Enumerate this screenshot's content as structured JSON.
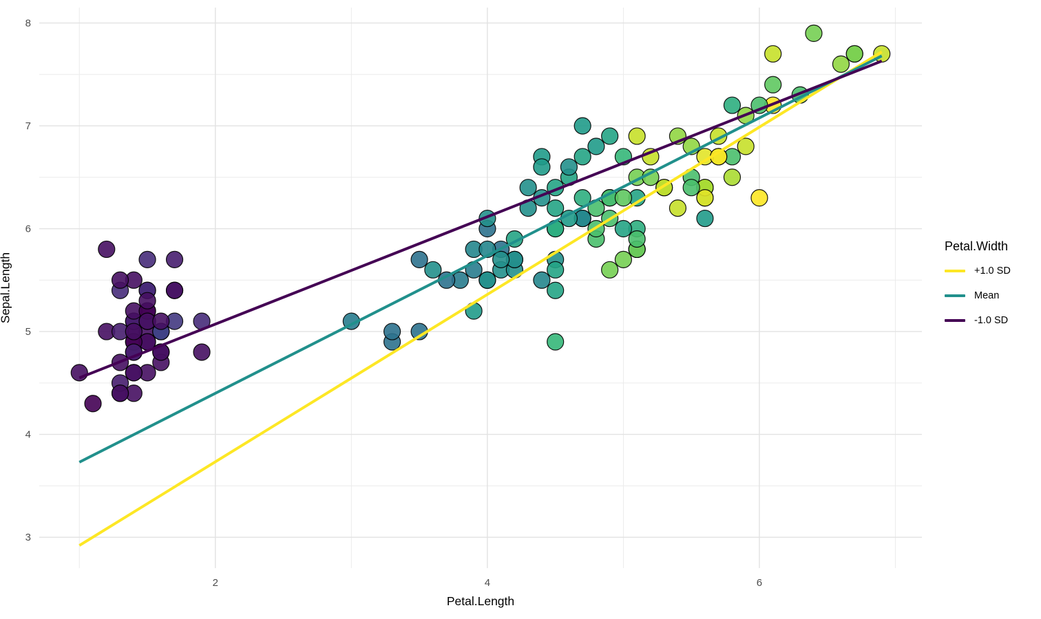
{
  "axes": {
    "x_title": "Petal.Length",
    "y_title": "Sepal.Length",
    "x_tick_labels": [
      "2",
      "4",
      "6"
    ],
    "y_tick_labels": [
      "3",
      "4",
      "5",
      "6",
      "7",
      "8"
    ],
    "tick_label_color": "#4d4d4d"
  },
  "legend": {
    "title": "Petal.Width",
    "items": [
      {
        "label": "+1.0 SD",
        "color": "#fde725"
      },
      {
        "label": "Mean",
        "color": "#21908c"
      },
      {
        "label": "-1.0 SD",
        "color": "#440154"
      }
    ]
  },
  "chart_data": {
    "type": "scatter",
    "title": "",
    "xlabel": "Petal.Length",
    "ylabel": "Sepal.Length",
    "xlim": [
      0.705,
      7.195
    ],
    "ylim": [
      2.7,
      8.15
    ],
    "x_major_ticks": [
      2,
      4,
      6
    ],
    "x_minor_ticks": [
      1,
      3,
      5,
      7
    ],
    "y_major_ticks": [
      3,
      4,
      5,
      6,
      7,
      8
    ],
    "y_minor_ticks": [
      3.5,
      4.5,
      5.5,
      6.5,
      7.5
    ],
    "grid": true,
    "legend_position": "right",
    "grid_major_color": "#e2e2e2",
    "grid_minor_color": "#ebebeb",
    "point_stroke_color": "#000000",
    "color_scale": {
      "name": "viridis",
      "domain": [
        0.1,
        2.5
      ],
      "stops": [
        "#440154",
        "#482878",
        "#3e4989",
        "#31688e",
        "#26828e",
        "#1f9e89",
        "#35b779",
        "#6dcd59",
        "#b4de2c",
        "#fde725"
      ]
    },
    "lines": [
      {
        "name": "+1.0 SD",
        "color": "#fde725",
        "x": [
          1.0,
          6.9
        ],
        "y": [
          2.92,
          7.72
        ]
      },
      {
        "name": "Mean",
        "color": "#21908c",
        "x": [
          1.0,
          6.9
        ],
        "y": [
          3.73,
          7.68
        ]
      },
      {
        "name": "-1.0 SD",
        "color": "#440154",
        "x": [
          1.0,
          6.9
        ],
        "y": [
          4.55,
          7.63
        ]
      }
    ],
    "point_fields": [
      "petal_length",
      "sepal_length",
      "petal_width"
    ],
    "points": [
      [
        1.4,
        5.1,
        0.2
      ],
      [
        1.4,
        4.9,
        0.2
      ],
      [
        1.3,
        4.7,
        0.2
      ],
      [
        1.5,
        4.6,
        0.2
      ],
      [
        1.4,
        5.0,
        0.2
      ],
      [
        1.7,
        5.4,
        0.4
      ],
      [
        1.4,
        4.6,
        0.3
      ],
      [
        1.5,
        5.0,
        0.2
      ],
      [
        1.4,
        4.4,
        0.2
      ],
      [
        1.5,
        4.9,
        0.1
      ],
      [
        1.5,
        5.4,
        0.2
      ],
      [
        1.6,
        4.8,
        0.2
      ],
      [
        1.4,
        4.8,
        0.1
      ],
      [
        1.1,
        4.3,
        0.1
      ],
      [
        1.2,
        5.8,
        0.2
      ],
      [
        1.5,
        5.7,
        0.4
      ],
      [
        1.3,
        5.4,
        0.4
      ],
      [
        1.4,
        5.1,
        0.3
      ],
      [
        1.7,
        5.7,
        0.3
      ],
      [
        1.5,
        5.1,
        0.3
      ],
      [
        1.7,
        5.4,
        0.2
      ],
      [
        1.5,
        5.1,
        0.4
      ],
      [
        1.0,
        4.6,
        0.2
      ],
      [
        1.7,
        5.1,
        0.5
      ],
      [
        1.9,
        4.8,
        0.2
      ],
      [
        1.6,
        5.0,
        0.2
      ],
      [
        1.6,
        5.0,
        0.4
      ],
      [
        1.5,
        5.2,
        0.2
      ],
      [
        1.4,
        5.2,
        0.2
      ],
      [
        1.6,
        4.7,
        0.2
      ],
      [
        1.6,
        4.8,
        0.2
      ],
      [
        1.5,
        5.4,
        0.4
      ],
      [
        1.5,
        5.2,
        0.1
      ],
      [
        1.4,
        5.5,
        0.2
      ],
      [
        1.5,
        4.9,
        0.2
      ],
      [
        1.2,
        5.0,
        0.2
      ],
      [
        1.3,
        5.5,
        0.2
      ],
      [
        1.4,
        4.9,
        0.1
      ],
      [
        1.3,
        4.4,
        0.2
      ],
      [
        1.5,
        5.1,
        0.2
      ],
      [
        1.3,
        5.0,
        0.3
      ],
      [
        1.3,
        4.5,
        0.3
      ],
      [
        1.3,
        4.4,
        0.2
      ],
      [
        1.6,
        5.0,
        0.6
      ],
      [
        1.9,
        5.1,
        0.4
      ],
      [
        1.4,
        4.8,
        0.3
      ],
      [
        1.6,
        5.1,
        0.2
      ],
      [
        1.4,
        4.6,
        0.2
      ],
      [
        1.5,
        5.3,
        0.2
      ],
      [
        1.4,
        5.0,
        0.2
      ],
      [
        4.7,
        7.0,
        1.4
      ],
      [
        4.5,
        6.4,
        1.5
      ],
      [
        4.9,
        6.9,
        1.5
      ],
      [
        4.0,
        5.5,
        1.3
      ],
      [
        4.6,
        6.5,
        1.5
      ],
      [
        4.5,
        5.7,
        1.3
      ],
      [
        4.7,
        6.3,
        1.6
      ],
      [
        3.3,
        4.9,
        1.0
      ],
      [
        4.6,
        6.6,
        1.3
      ],
      [
        3.9,
        5.2,
        1.4
      ],
      [
        3.5,
        5.0,
        1.0
      ],
      [
        4.2,
        5.9,
        1.5
      ],
      [
        4.0,
        6.0,
        1.0
      ],
      [
        4.7,
        6.1,
        1.4
      ],
      [
        3.6,
        5.6,
        1.3
      ],
      [
        4.4,
        6.7,
        1.4
      ],
      [
        4.5,
        5.6,
        1.5
      ],
      [
        4.1,
        5.8,
        1.0
      ],
      [
        4.5,
        6.2,
        1.5
      ],
      [
        3.9,
        5.6,
        1.1
      ],
      [
        4.8,
        5.9,
        1.8
      ],
      [
        4.0,
        6.1,
        1.3
      ],
      [
        4.9,
        6.3,
        1.5
      ],
      [
        4.7,
        6.1,
        1.2
      ],
      [
        4.3,
        6.4,
        1.3
      ],
      [
        4.4,
        6.6,
        1.4
      ],
      [
        4.8,
        6.8,
        1.4
      ],
      [
        5.0,
        6.7,
        1.7
      ],
      [
        4.5,
        6.0,
        1.5
      ],
      [
        3.5,
        5.7,
        1.0
      ],
      [
        3.8,
        5.5,
        1.1
      ],
      [
        3.7,
        5.5,
        1.0
      ],
      [
        3.9,
        5.8,
        1.2
      ],
      [
        5.1,
        6.0,
        1.6
      ],
      [
        4.5,
        5.4,
        1.5
      ],
      [
        4.5,
        6.0,
        1.6
      ],
      [
        4.7,
        6.7,
        1.5
      ],
      [
        4.4,
        6.3,
        1.3
      ],
      [
        4.1,
        5.6,
        1.3
      ],
      [
        4.0,
        5.5,
        1.3
      ],
      [
        4.4,
        5.5,
        1.2
      ],
      [
        4.6,
        6.1,
        1.4
      ],
      [
        4.0,
        5.8,
        1.2
      ],
      [
        3.3,
        5.0,
        1.0
      ],
      [
        4.2,
        5.6,
        1.3
      ],
      [
        4.2,
        5.7,
        1.2
      ],
      [
        4.2,
        5.7,
        1.3
      ],
      [
        4.3,
        6.2,
        1.3
      ],
      [
        3.0,
        5.1,
        1.1
      ],
      [
        4.1,
        5.7,
        1.3
      ],
      [
        6.0,
        6.3,
        2.5
      ],
      [
        5.1,
        5.8,
        1.9
      ],
      [
        5.9,
        7.1,
        2.1
      ],
      [
        5.6,
        6.3,
        1.8
      ],
      [
        5.8,
        6.5,
        2.2
      ],
      [
        6.6,
        7.6,
        2.1
      ],
      [
        4.5,
        4.9,
        1.7
      ],
      [
        6.3,
        7.3,
        1.8
      ],
      [
        5.8,
        6.7,
        1.8
      ],
      [
        6.1,
        7.2,
        2.5
      ],
      [
        5.1,
        6.5,
        2.0
      ],
      [
        5.3,
        6.4,
        1.9
      ],
      [
        5.5,
        6.8,
        2.1
      ],
      [
        5.0,
        5.7,
        2.0
      ],
      [
        5.1,
        5.8,
        2.4
      ],
      [
        5.3,
        6.4,
        2.3
      ],
      [
        5.5,
        6.5,
        1.8
      ],
      [
        6.7,
        7.7,
        2.2
      ],
      [
        6.9,
        7.7,
        2.3
      ],
      [
        5.0,
        6.0,
        1.5
      ],
      [
        5.7,
        6.9,
        2.3
      ],
      [
        4.9,
        5.6,
        2.0
      ],
      [
        6.7,
        7.7,
        2.0
      ],
      [
        4.9,
        6.3,
        1.8
      ],
      [
        5.7,
        6.7,
        2.1
      ],
      [
        6.0,
        7.2,
        1.8
      ],
      [
        4.8,
        6.2,
        1.8
      ],
      [
        4.9,
        6.1,
        1.8
      ],
      [
        5.6,
        6.4,
        2.1
      ],
      [
        5.8,
        7.2,
        1.6
      ],
      [
        6.1,
        7.4,
        1.9
      ],
      [
        6.4,
        7.9,
        2.0
      ],
      [
        5.6,
        6.4,
        2.2
      ],
      [
        5.1,
        6.3,
        1.5
      ],
      [
        5.6,
        6.1,
        1.4
      ],
      [
        6.1,
        7.7,
        2.3
      ],
      [
        5.6,
        6.3,
        2.4
      ],
      [
        5.5,
        6.4,
        1.8
      ],
      [
        4.8,
        6.0,
        1.8
      ],
      [
        5.4,
        6.9,
        2.1
      ],
      [
        5.6,
        6.7,
        2.4
      ],
      [
        5.1,
        6.9,
        2.3
      ],
      [
        5.1,
        5.8,
        1.9
      ],
      [
        5.9,
        6.8,
        2.3
      ],
      [
        5.7,
        6.7,
        2.5
      ],
      [
        5.2,
        6.7,
        2.3
      ],
      [
        5.0,
        6.3,
        1.9
      ],
      [
        5.2,
        6.5,
        2.0
      ],
      [
        5.4,
        6.2,
        2.3
      ],
      [
        5.1,
        5.9,
        1.8
      ]
    ]
  }
}
